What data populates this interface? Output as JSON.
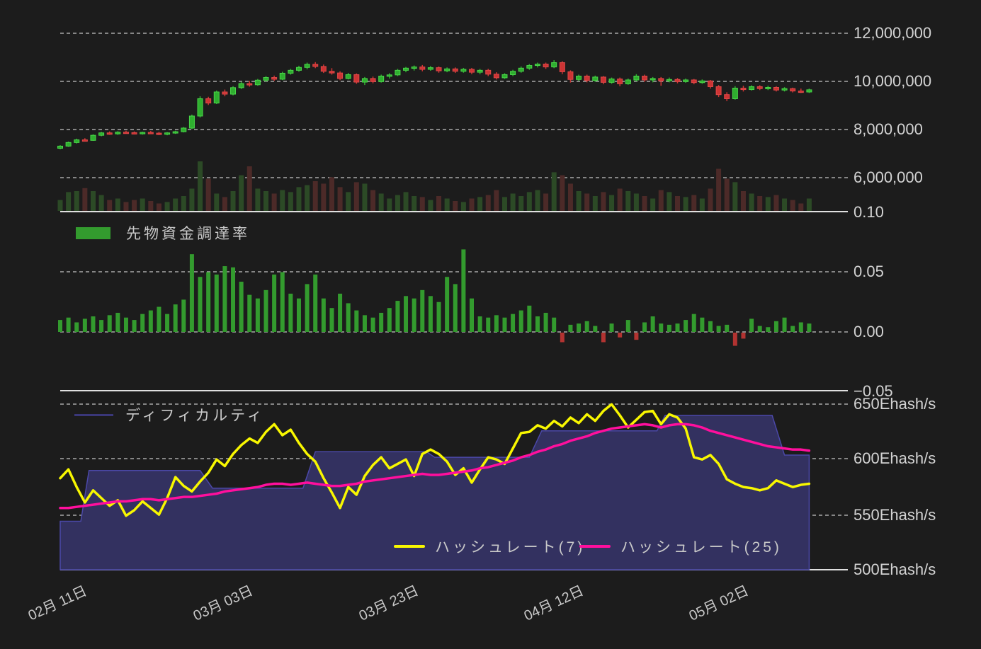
{
  "colors": {
    "background": "#1c1c1c",
    "grid": "#c2c2c2",
    "axis_line": "#e0e0e0",
    "label_text": "#d3d3d3",
    "legend_text": "#c9c9c9",
    "candle_up": "#2fae2f",
    "candle_up_edge": "#49d649",
    "candle_down": "#cc3434",
    "candle_down_edge": "#e04848",
    "volume_up": "#2c4a26",
    "volume_down": "#4c2a28",
    "funding_pos": "#339b2e",
    "funding_neg": "#b23331",
    "hr7": "#f8f700",
    "hr25": "#ff0f9d",
    "difficulty_fill": "#333160",
    "difficulty_stroke": "#4b48a8",
    "difficulty_swatch": "#3a3779"
  },
  "legends": {
    "funding": "先物資金調達率",
    "difficulty": "ディフィカルティ",
    "hr7": "ハッシュレート(7)",
    "hr25": "ハッシュレート(25)"
  },
  "axes": {
    "price": [
      "12,000,000",
      "10,000,000",
      "8,000,000",
      "6,000,000"
    ],
    "funding": [
      "0.10",
      "0.05",
      "0.00",
      "−0.05"
    ],
    "hashrate": [
      "650Ehash/s",
      "600Ehash/s",
      "550Ehash/s",
      "500Ehash/s"
    ],
    "x": [
      "02月 11日",
      "03月 03日",
      "03月 23日",
      "04月 12日",
      "05月 02日"
    ]
  },
  "chart_data": {
    "type": "composite",
    "x_unit": "day",
    "x_tick_indices": [
      0,
      20,
      40,
      60,
      80
    ],
    "x_tick_labels": [
      "02月 11日",
      "03月 03日",
      "03月 23日",
      "04月 12日",
      "05月 02日"
    ],
    "panels": [
      {
        "name": "price",
        "type": "candlestick",
        "y_ticks": [
          12000000,
          10000000,
          8000000,
          6000000
        ],
        "unit": "JPY",
        "candles_ohlc_millions": [
          [
            7.22,
            7.35,
            7.18,
            7.31
          ],
          [
            7.31,
            7.5,
            7.28,
            7.46
          ],
          [
            7.46,
            7.62,
            7.42,
            7.57
          ],
          [
            7.57,
            7.64,
            7.5,
            7.55
          ],
          [
            7.55,
            7.8,
            7.53,
            7.76
          ],
          [
            7.76,
            7.9,
            7.72,
            7.86
          ],
          [
            7.86,
            7.92,
            7.78,
            7.82
          ],
          [
            7.82,
            7.93,
            7.78,
            7.89
          ],
          [
            7.89,
            7.95,
            7.83,
            7.87
          ],
          [
            7.87,
            7.92,
            7.8,
            7.84
          ],
          [
            7.84,
            7.91,
            7.79,
            7.88
          ],
          [
            7.88,
            7.94,
            7.82,
            7.85
          ],
          [
            7.85,
            7.9,
            7.77,
            7.81
          ],
          [
            7.81,
            7.89,
            7.76,
            7.86
          ],
          [
            7.86,
            7.95,
            7.82,
            7.91
          ],
          [
            7.91,
            8.1,
            7.88,
            8.06
          ],
          [
            8.06,
            8.62,
            8.02,
            8.56
          ],
          [
            8.56,
            9.38,
            8.5,
            9.28
          ],
          [
            9.28,
            9.36,
            9.02,
            9.1
          ],
          [
            9.1,
            9.62,
            9.06,
            9.56
          ],
          [
            9.56,
            9.66,
            9.38,
            9.47
          ],
          [
            9.47,
            9.8,
            9.42,
            9.74
          ],
          [
            9.74,
            9.98,
            9.68,
            9.91
          ],
          [
            9.91,
            10.02,
            9.78,
            9.86
          ],
          [
            9.86,
            10.1,
            9.82,
            10.05
          ],
          [
            10.05,
            10.22,
            9.98,
            10.16
          ],
          [
            10.16,
            10.24,
            10.02,
            10.09
          ],
          [
            10.09,
            10.4,
            10.05,
            10.34
          ],
          [
            10.34,
            10.52,
            10.28,
            10.46
          ],
          [
            10.46,
            10.65,
            10.4,
            10.58
          ],
          [
            10.58,
            10.78,
            10.5,
            10.71
          ],
          [
            10.71,
            10.8,
            10.55,
            10.62
          ],
          [
            10.62,
            10.7,
            10.35,
            10.42
          ],
          [
            10.42,
            10.55,
            10.28,
            10.35
          ],
          [
            10.35,
            10.42,
            10.05,
            10.12
          ],
          [
            10.12,
            10.35,
            10.08,
            10.28
          ],
          [
            10.28,
            10.33,
            9.9,
            9.97
          ],
          [
            9.97,
            10.18,
            9.85,
            10.12
          ],
          [
            10.12,
            10.2,
            9.92,
            9.99
          ],
          [
            9.99,
            10.28,
            9.95,
            10.22
          ],
          [
            10.22,
            10.34,
            10.12,
            10.27
          ],
          [
            10.27,
            10.52,
            10.22,
            10.46
          ],
          [
            10.46,
            10.6,
            10.38,
            10.55
          ],
          [
            10.55,
            10.66,
            10.45,
            10.6
          ],
          [
            10.6,
            10.68,
            10.42,
            10.5
          ],
          [
            10.5,
            10.64,
            10.44,
            10.57
          ],
          [
            10.57,
            10.62,
            10.36,
            10.44
          ],
          [
            10.44,
            10.58,
            10.38,
            10.52
          ],
          [
            10.52,
            10.58,
            10.35,
            10.42
          ],
          [
            10.42,
            10.56,
            10.36,
            10.5
          ],
          [
            10.5,
            10.56,
            10.3,
            10.38
          ],
          [
            10.38,
            10.52,
            10.3,
            10.46
          ],
          [
            10.46,
            10.52,
            10.22,
            10.3
          ],
          [
            10.3,
            10.38,
            10.08,
            10.15
          ],
          [
            10.15,
            10.34,
            10.1,
            10.28
          ],
          [
            10.28,
            10.48,
            10.22,
            10.42
          ],
          [
            10.42,
            10.62,
            10.36,
            10.55
          ],
          [
            10.55,
            10.72,
            10.48,
            10.66
          ],
          [
            10.66,
            10.78,
            10.58,
            10.72
          ],
          [
            10.72,
            10.78,
            10.52,
            10.6
          ],
          [
            10.6,
            10.88,
            10.55,
            10.78
          ],
          [
            10.78,
            10.84,
            10.3,
            10.4
          ],
          [
            10.4,
            10.46,
            9.95,
            10.08
          ],
          [
            10.08,
            10.28,
            10.02,
            10.22
          ],
          [
            10.22,
            10.28,
            9.96,
            10.04
          ],
          [
            10.04,
            10.24,
            9.98,
            10.18
          ],
          [
            10.18,
            10.22,
            9.88,
            9.96
          ],
          [
            9.96,
            10.16,
            9.9,
            10.1
          ],
          [
            10.1,
            10.16,
            9.8,
            9.9
          ],
          [
            9.9,
            10.12,
            9.86,
            10.06
          ],
          [
            10.06,
            10.3,
            10.0,
            10.22
          ],
          [
            10.22,
            10.28,
            9.98,
            10.06
          ],
          [
            10.06,
            10.18,
            9.96,
            10.12
          ],
          [
            10.12,
            10.18,
            9.82,
            10.02
          ],
          [
            10.02,
            10.16,
            9.96,
            10.08
          ],
          [
            10.08,
            10.14,
            9.92,
            9.99
          ],
          [
            9.99,
            10.12,
            9.94,
            10.06
          ],
          [
            10.06,
            10.1,
            9.88,
            9.95
          ],
          [
            9.95,
            10.08,
            9.9,
            10.02
          ],
          [
            10.02,
            10.06,
            9.7,
            9.78
          ],
          [
            9.78,
            9.85,
            9.35,
            9.45
          ],
          [
            9.45,
            9.55,
            9.18,
            9.28
          ],
          [
            9.28,
            9.8,
            9.24,
            9.72
          ],
          [
            9.72,
            9.82,
            9.58,
            9.66
          ],
          [
            9.66,
            9.84,
            9.62,
            9.78
          ],
          [
            9.78,
            9.84,
            9.64,
            9.7
          ],
          [
            9.7,
            9.82,
            9.64,
            9.75
          ],
          [
            9.75,
            9.8,
            9.58,
            9.64
          ],
          [
            9.64,
            9.76,
            9.58,
            9.7
          ],
          [
            9.7,
            9.74,
            9.54,
            9.6
          ],
          [
            9.6,
            9.7,
            9.52,
            9.56
          ],
          [
            9.56,
            9.7,
            9.52,
            9.65
          ]
        ],
        "volume_relative": [
          0.22,
          0.38,
          0.4,
          0.46,
          0.4,
          0.32,
          0.22,
          0.25,
          0.18,
          0.22,
          0.25,
          0.2,
          0.15,
          0.18,
          0.25,
          0.3,
          0.45,
          1.0,
          0.65,
          0.35,
          0.28,
          0.4,
          0.72,
          0.9,
          0.45,
          0.4,
          0.35,
          0.42,
          0.38,
          0.48,
          0.52,
          0.6,
          0.55,
          0.68,
          0.48,
          0.38,
          0.58,
          0.55,
          0.42,
          0.35,
          0.25,
          0.32,
          0.38,
          0.3,
          0.28,
          0.22,
          0.3,
          0.25,
          0.2,
          0.18,
          0.25,
          0.28,
          0.32,
          0.42,
          0.28,
          0.35,
          0.3,
          0.38,
          0.42,
          0.35,
          0.78,
          0.72,
          0.55,
          0.4,
          0.35,
          0.3,
          0.38,
          0.32,
          0.45,
          0.4,
          0.35,
          0.3,
          0.25,
          0.42,
          0.38,
          0.3,
          0.28,
          0.32,
          0.25,
          0.45,
          0.85,
          0.65,
          0.58,
          0.4,
          0.35,
          0.3,
          0.28,
          0.32,
          0.25,
          0.22,
          0.15,
          0.25
        ]
      },
      {
        "name": "funding",
        "type": "bar",
        "series_label": "先物資金調達率",
        "y_ticks": [
          0.1,
          0.05,
          0.0,
          -0.05
        ],
        "values": [
          0.01,
          0.012,
          0.008,
          0.011,
          0.013,
          0.01,
          0.014,
          0.016,
          0.012,
          0.01,
          0.015,
          0.018,
          0.021,
          0.015,
          0.023,
          0.027,
          0.065,
          0.046,
          0.05,
          0.048,
          0.055,
          0.054,
          0.042,
          0.031,
          0.028,
          0.035,
          0.048,
          0.05,
          0.032,
          0.028,
          0.04,
          0.048,
          0.028,
          0.02,
          0.032,
          0.024,
          0.018,
          0.014,
          0.012,
          0.016,
          0.02,
          0.026,
          0.03,
          0.028,
          0.035,
          0.03,
          0.025,
          0.046,
          0.04,
          0.069,
          0.028,
          0.013,
          0.012,
          0.014,
          0.012,
          0.015,
          0.018,
          0.022,
          0.013,
          0.016,
          0.012,
          -0.008,
          0.006,
          0.007,
          0.009,
          0.005,
          -0.008,
          0.007,
          -0.004,
          0.01,
          -0.006,
          0.008,
          0.013,
          0.007,
          0.006,
          0.007,
          0.01,
          0.015,
          0.012,
          0.009,
          0.005,
          0.006,
          -0.011,
          -0.005,
          0.011,
          0.005,
          0.004,
          0.009,
          0.012,
          0.005,
          0.008,
          0.007
        ]
      },
      {
        "name": "hashrate",
        "type": "line+area",
        "y_ticks": [
          650,
          600,
          550,
          500
        ],
        "unit": "Ehash/s",
        "difficulty_step_points": [
          [
            0,
            544
          ],
          [
            2.5,
            544
          ],
          [
            3.5,
            590
          ],
          [
            17,
            590
          ],
          [
            18.5,
            574
          ],
          [
            29.5,
            574
          ],
          [
            31,
            607
          ],
          [
            44.5,
            607
          ],
          [
            45.5,
            602
          ],
          [
            57,
            602
          ],
          [
            58.5,
            626
          ],
          [
            72.5,
            626
          ],
          [
            73.5,
            640
          ],
          [
            86.5,
            640
          ],
          [
            88,
            604
          ],
          [
            91,
            604
          ]
        ],
        "series": [
          {
            "name": "ハッシュレート(7)",
            "color": "#f8f700",
            "values": [
              583,
              591,
              575,
              561,
              572,
              565,
              558,
              563,
              549,
              554,
              562,
              556,
              550,
              565,
              584,
              576,
              571,
              580,
              588,
              600,
              594,
              605,
              613,
              619,
              615,
              625,
              632,
              622,
              627,
              615,
              605,
              598,
              583,
              570,
              556,
              575,
              568,
              585,
              595,
              602,
              592,
              596,
              600,
              585,
              605,
              609,
              605,
              598,
              586,
              592,
              579,
              591,
              602,
              600,
              596,
              610,
              624,
              625,
              631,
              628,
              635,
              630,
              638,
              633,
              641,
              635,
              644,
              650,
              640,
              629,
              636,
              643,
              644,
              632,
              641,
              638,
              628,
              602,
              600,
              604,
              596,
              582,
              578,
              575,
              574,
              572,
              574,
              581,
              578,
              575,
              577,
              578
            ]
          },
          {
            "name": "ハッシュレート(25)",
            "color": "#ff0f9d",
            "values": [
              556,
              556,
              557,
              558,
              559,
              560,
              561,
              562,
              562,
              563,
              564,
              564,
              563,
              564,
              565,
              566,
              566,
              567,
              568,
              569,
              571,
              572,
              573,
              574,
              575,
              577,
              578,
              578,
              577,
              578,
              579,
              578,
              577,
              576,
              576,
              577,
              578,
              580,
              581,
              582,
              583,
              584,
              585,
              586,
              587,
              586,
              586,
              587,
              588,
              589,
              590,
              592,
              593,
              595,
              597,
              599,
              602,
              604,
              607,
              609,
              612,
              614,
              617,
              619,
              621,
              624,
              626,
              628,
              629,
              630,
              631,
              632,
              631,
              629,
              631,
              632,
              632,
              631,
              629,
              626,
              624,
              622,
              620,
              618,
              616,
              614,
              612,
              611,
              610,
              609,
              609,
              608
            ]
          }
        ]
      }
    ]
  }
}
